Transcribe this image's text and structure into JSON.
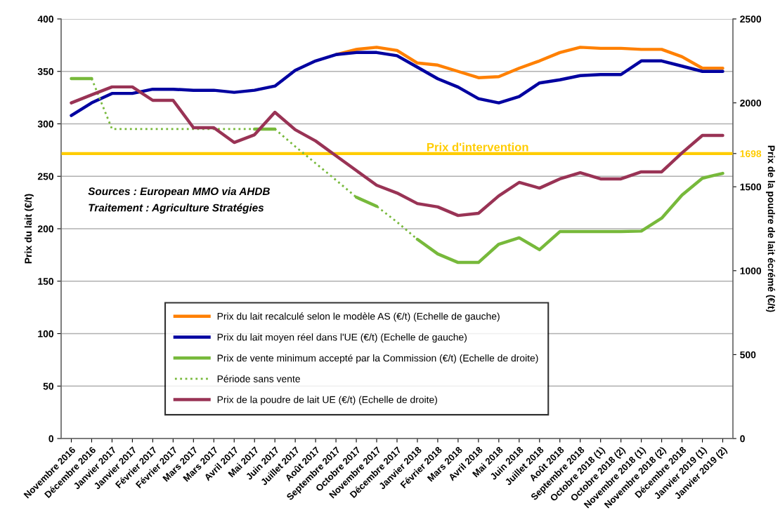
{
  "chart_data": {
    "type": "line",
    "categories": [
      "Novembre 2016",
      "Décembre 2016",
      "Janvier 2017",
      "Janvier 2017",
      "Février 2017",
      "Février 2017",
      "Mars 2017",
      "Mars 2017",
      "Avril 2017",
      "Mai 2017",
      "Juin 2017",
      "Juillet 2017",
      "Août 2017",
      "Septembre 2017",
      "Octobre 2017",
      "Novembre 2017",
      "Décembre 2017",
      "Janvier 2018",
      "Février 2018",
      "Mars 2018",
      "Avril 2018",
      "Mai 2018",
      "Juin 2018",
      "Juillet 2018",
      "Août 2018",
      "Septembre 2018",
      "Octobre 2018 (1)",
      "Octobre 2018 (2)",
      "Novembre 2018 (1)",
      "Novembre 2018 (2)",
      "Décembre 2018",
      "Janvier 2019 (1)",
      "Janvier 2019 (2)"
    ],
    "series": [
      {
        "name": "Prix du lait recalculé selon le modèle AS (€/t) (Echelle de gauche)",
        "color": "#ff8000",
        "values": [
          null,
          null,
          null,
          null,
          null,
          null,
          null,
          null,
          null,
          null,
          null,
          null,
          null,
          366,
          371,
          373,
          370,
          358,
          356,
          350,
          344,
          345,
          353,
          360,
          368,
          373,
          372,
          372,
          371,
          371,
          364,
          353,
          353
        ]
      },
      {
        "name": "Prix du lait moyen réel dans l'UE (€/t) (Echelle de gauche)",
        "color": "#0000a0",
        "values": [
          308,
          320,
          329,
          329,
          333,
          333,
          332,
          332,
          330,
          332,
          336,
          351,
          360,
          366,
          368,
          368,
          365,
          354,
          343,
          335,
          324,
          320,
          326,
          339,
          342,
          346,
          347,
          347,
          360,
          360,
          355,
          350,
          350
        ]
      },
      {
        "name": "Prix de vente minimum accepté par la Commission (€/t) (Echelle de droite)",
        "color": "#77b93b",
        "axis": "y2",
        "values": [
          2145,
          2145,
          null,
          null,
          null,
          null,
          null,
          null,
          null,
          1844,
          1844,
          null,
          null,
          null,
          1438,
          1384,
          null,
          1187,
          1100,
          1049,
          1049,
          1158,
          1196,
          1125,
          1233,
          1233,
          1233,
          1233,
          1236,
          1313,
          1451,
          1551,
          1580
        ]
      },
      {
        "name": "Période sans vente",
        "color": "#77b93b",
        "axis": "y2",
        "line_style": "dotted",
        "values": [
          null,
          2145,
          1844,
          1844,
          1844,
          1844,
          1844,
          1844,
          1844,
          1844,
          1844,
          1740,
          1640,
          1540,
          1438,
          1384,
          1290,
          1187,
          null,
          null,
          null,
          null,
          null,
          null,
          null,
          null,
          null,
          null,
          null,
          null,
          null,
          null,
          null
        ]
      },
      {
        "name": "Prix de la poudre de lait UE (€/t) (Echelle de droite)",
        "color": "#993355",
        "axis": "y2",
        "values": [
          2000,
          2048,
          2095,
          2095,
          2015,
          2015,
          1852,
          1852,
          1764,
          1810,
          1944,
          1840,
          1773,
          1685,
          1597,
          1509,
          1463,
          1400,
          1380,
          1329,
          1342,
          1446,
          1526,
          1492,
          1547,
          1584,
          1547,
          1547,
          1589,
          1589,
          1702,
          1806,
          1806
        ]
      }
    ],
    "ylabel": "Prix du lait (€/t)",
    "y2label": "Prix de la poudre de lait écrémé (€/t)",
    "ylim": [
      0,
      400
    ],
    "yticks": [
      0,
      50,
      100,
      150,
      200,
      250,
      300,
      350,
      400
    ],
    "y2lim": [
      0,
      2500
    ],
    "y2ticks": [
      0,
      500,
      1000,
      1500,
      2000,
      2500,
      {
        "value": 1698,
        "label": "1698"
      }
    ],
    "ref_lines": [
      {
        "axis": "y2",
        "value": 1698,
        "label": "Prix d'intervention",
        "color": "#ffcc00"
      }
    ],
    "annotations": [
      "Sources : European MMO via AHDB",
      "Traitement : Agriculture Stratégies"
    ],
    "grid": "y",
    "legend": "bottom",
    "marker": "none",
    "line_style": "solid"
  }
}
